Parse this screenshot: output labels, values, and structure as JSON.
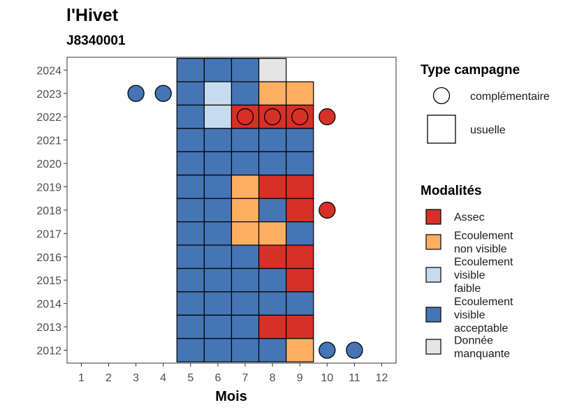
{
  "chart_data": {
    "type": "heatmap",
    "title": "l'Hivet",
    "subtitle": "J8340001",
    "xlabel": "Mois",
    "ylabel": "",
    "x_ticks": [
      1,
      2,
      3,
      4,
      5,
      6,
      7,
      8,
      9,
      10,
      11,
      12
    ],
    "y_ticks": [
      2012,
      2013,
      2014,
      2015,
      2016,
      2017,
      2018,
      2019,
      2020,
      2021,
      2022,
      2023,
      2024
    ],
    "grid": false,
    "legend_position": "right",
    "colors": {
      "Assec": "#d73027",
      "Ecoulement non visible": "#fdae61",
      "Ecoulement visible faible": "#c6dbef",
      "Ecoulement visible acceptable": "#4575b4",
      "Donnée manquante": "#e5e5e5"
    },
    "legend_type": {
      "title": "Type campagne",
      "items": [
        {
          "label": "complémentaire",
          "shape": "circle"
        },
        {
          "label": "usuelle",
          "shape": "square"
        }
      ]
    },
    "legend_modalites": {
      "title": "Modalités",
      "items": [
        {
          "key": "Assec",
          "lines": [
            "Assec"
          ]
        },
        {
          "key": "Ecoulement non visible",
          "lines": [
            "Ecoulement",
            "non visible"
          ]
        },
        {
          "key": "Ecoulement visible faible",
          "lines": [
            "Ecoulement",
            "visible",
            "faible"
          ]
        },
        {
          "key": "Ecoulement visible acceptable",
          "lines": [
            "Ecoulement",
            "visible",
            "acceptable"
          ]
        },
        {
          "key": "Donnée manquante",
          "lines": [
            "Donnée",
            "manquante"
          ]
        }
      ]
    },
    "usuelle": [
      {
        "year": 2024,
        "months": [
          "Ecoulement visible acceptable",
          "Ecoulement visible acceptable",
          "Ecoulement visible acceptable",
          "Donnée manquante",
          null
        ]
      },
      {
        "year": 2023,
        "months": [
          "Ecoulement visible acceptable",
          "Ecoulement visible faible",
          "Ecoulement visible acceptable",
          "Ecoulement non visible",
          "Ecoulement non visible"
        ]
      },
      {
        "year": 2022,
        "months": [
          "Ecoulement visible acceptable",
          "Ecoulement visible faible",
          "Assec",
          "Assec",
          "Assec"
        ]
      },
      {
        "year": 2021,
        "months": [
          "Ecoulement visible acceptable",
          "Ecoulement visible acceptable",
          "Ecoulement visible acceptable",
          "Ecoulement visible acceptable",
          "Ecoulement visible acceptable"
        ]
      },
      {
        "year": 2020,
        "months": [
          "Ecoulement visible acceptable",
          "Ecoulement visible acceptable",
          "Ecoulement visible acceptable",
          "Ecoulement visible acceptable",
          "Ecoulement visible acceptable"
        ]
      },
      {
        "year": 2019,
        "months": [
          "Ecoulement visible acceptable",
          "Ecoulement visible acceptable",
          "Ecoulement non visible",
          "Assec",
          "Assec"
        ]
      },
      {
        "year": 2018,
        "months": [
          "Ecoulement visible acceptable",
          "Ecoulement visible acceptable",
          "Ecoulement non visible",
          "Ecoulement visible acceptable",
          "Assec"
        ]
      },
      {
        "year": 2017,
        "months": [
          "Ecoulement visible acceptable",
          "Ecoulement visible acceptable",
          "Ecoulement non visible",
          "Ecoulement non visible",
          "Ecoulement visible acceptable"
        ]
      },
      {
        "year": 2016,
        "months": [
          "Ecoulement visible acceptable",
          "Ecoulement visible acceptable",
          "Ecoulement visible acceptable",
          "Assec",
          "Assec"
        ]
      },
      {
        "year": 2015,
        "months": [
          "Ecoulement visible acceptable",
          "Ecoulement visible acceptable",
          "Ecoulement visible acceptable",
          "Ecoulement visible acceptable",
          "Assec"
        ]
      },
      {
        "year": 2014,
        "months": [
          "Ecoulement visible acceptable",
          "Ecoulement visible acceptable",
          "Ecoulement visible acceptable",
          "Ecoulement visible acceptable",
          "Ecoulement visible acceptable"
        ]
      },
      {
        "year": 2013,
        "months": [
          "Ecoulement visible acceptable",
          "Ecoulement visible acceptable",
          "Ecoulement visible acceptable",
          "Assec",
          "Assec"
        ]
      },
      {
        "year": 2012,
        "months": [
          "Ecoulement visible acceptable",
          "Ecoulement visible acceptable",
          "Ecoulement visible acceptable",
          "Ecoulement visible acceptable",
          "Ecoulement non visible"
        ]
      }
    ],
    "usuelle_first_month": 5,
    "complementaire": [
      {
        "year": 2023,
        "month": 3,
        "value": "Ecoulement visible acceptable"
      },
      {
        "year": 2023,
        "month": 4,
        "value": "Ecoulement visible acceptable"
      },
      {
        "year": 2022,
        "month": 7,
        "value": "Assec"
      },
      {
        "year": 2022,
        "month": 8,
        "value": "Assec"
      },
      {
        "year": 2022,
        "month": 9,
        "value": "Assec"
      },
      {
        "year": 2022,
        "month": 10,
        "value": "Assec"
      },
      {
        "year": 2018,
        "month": 10,
        "value": "Assec"
      },
      {
        "year": 2012,
        "month": 10,
        "value": "Ecoulement visible acceptable"
      },
      {
        "year": 2012,
        "month": 11,
        "value": "Ecoulement visible acceptable"
      }
    ]
  }
}
